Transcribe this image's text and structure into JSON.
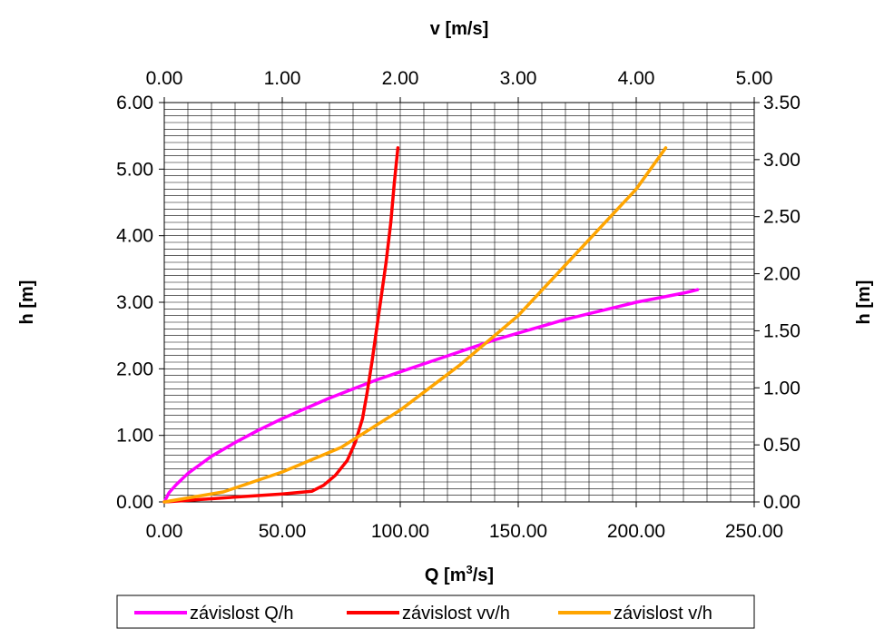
{
  "chart_data": {
    "type": "line",
    "grid": true,
    "legend_position": "bottom",
    "axes": {
      "x_bottom": {
        "label": "Q [m",
        "label_sup": "3",
        "label_end": "/s]",
        "range": [
          0,
          250
        ],
        "ticks": [
          "0.00",
          "50.00",
          "100.00",
          "150.00",
          "200.00",
          "250.00"
        ]
      },
      "x_top": {
        "label": "v [m/s]",
        "range": [
          0,
          5
        ],
        "ticks": [
          "0.00",
          "1.00",
          "2.00",
          "3.00",
          "4.00",
          "5.00"
        ]
      },
      "y_left": {
        "label": "h [m]",
        "range": [
          0,
          6
        ],
        "ticks": [
          "0.00",
          "1.00",
          "2.00",
          "3.00",
          "4.00",
          "5.00",
          "6.00"
        ]
      },
      "y_right": {
        "label": "h [m]",
        "range": [
          0,
          3.5
        ],
        "ticks": [
          "0.00",
          "0.50",
          "1.00",
          "1.50",
          "2.00",
          "2.50",
          "3.00",
          "3.50"
        ]
      }
    },
    "series": [
      {
        "name": "závislost Q/h",
        "color": "#ff00ff",
        "x_axis": "bottom",
        "y_axis": "right",
        "x": [
          0,
          2,
          5,
          10,
          20,
          30,
          40,
          50,
          60,
          70,
          80,
          90,
          100,
          110,
          120,
          130,
          140,
          150,
          160,
          170,
          180,
          190,
          200,
          210,
          220,
          226
        ],
        "y": [
          0,
          0.08,
          0.15,
          0.25,
          0.4,
          0.52,
          0.63,
          0.73,
          0.82,
          0.91,
          0.99,
          1.07,
          1.14,
          1.21,
          1.28,
          1.35,
          1.42,
          1.48,
          1.54,
          1.6,
          1.65,
          1.7,
          1.75,
          1.79,
          1.83,
          1.86
        ]
      },
      {
        "name": "závislost vv/h",
        "color": "#ff0000",
        "x_axis": "top",
        "y_axis": "left",
        "x": [
          0,
          0.5,
          1.0,
          1.25,
          1.35,
          1.45,
          1.55,
          1.62,
          1.68,
          1.72,
          1.76,
          1.8,
          1.84,
          1.88,
          1.92,
          1.95,
          1.98
        ],
        "y": [
          0,
          0.06,
          0.12,
          0.16,
          0.25,
          0.4,
          0.62,
          0.9,
          1.25,
          1.65,
          2.1,
          2.6,
          3.1,
          3.6,
          4.2,
          4.8,
          5.32
        ]
      },
      {
        "name": "závislost v/h",
        "color": "#ffa500",
        "x_axis": "top",
        "y_axis": "left",
        "x": [
          0,
          0.5,
          1.0,
          1.5,
          2.0,
          2.5,
          3.0,
          3.5,
          4.0,
          4.25
        ],
        "y": [
          0,
          0.15,
          0.45,
          0.82,
          1.38,
          2.05,
          2.8,
          3.75,
          4.7,
          5.32
        ]
      }
    ]
  }
}
